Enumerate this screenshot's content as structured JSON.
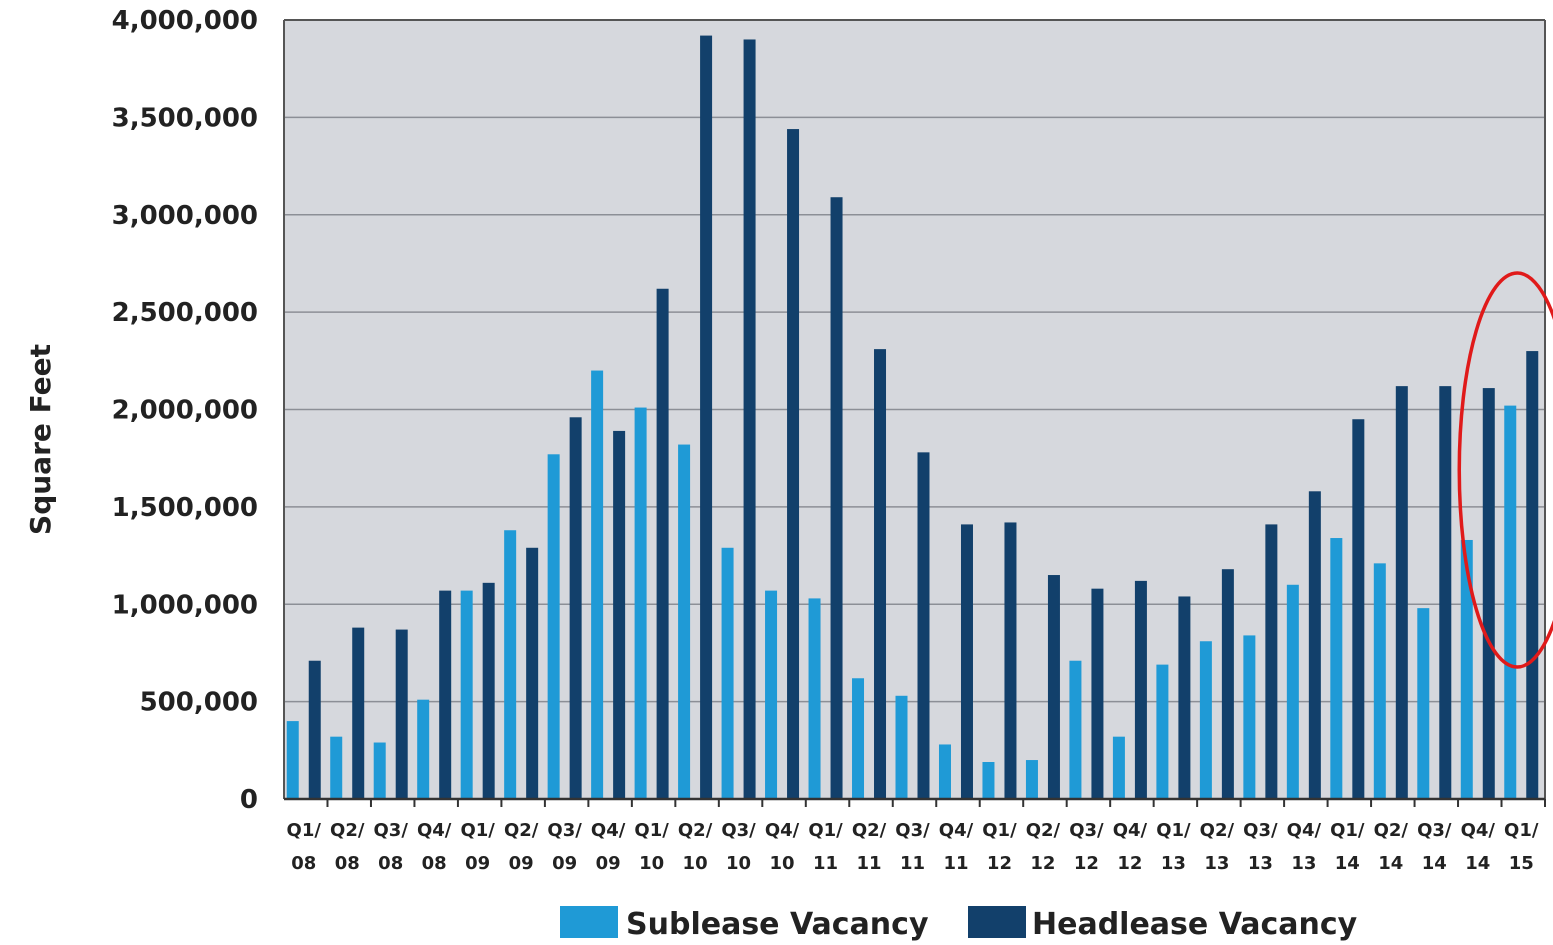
{
  "chart_data": {
    "type": "bar",
    "ylabel": "Square Feet",
    "ylim": [
      0,
      4000000
    ],
    "yticks": [
      0,
      500000,
      1000000,
      1500000,
      2000000,
      2500000,
      3000000,
      3500000,
      4000000
    ],
    "ytick_labels": [
      "0",
      "500,000",
      "1,000,000",
      "1,500,000",
      "2,000,000",
      "2,500,000",
      "3,000,000",
      "3,500,000",
      "4,000,000"
    ],
    "categories": [
      "Q1/08",
      "Q2/08",
      "Q3/08",
      "Q4/08",
      "Q1/09",
      "Q2/09",
      "Q3/09",
      "Q4/09",
      "Q1/10",
      "Q2/10",
      "Q3/10",
      "Q4/10",
      "Q1/11",
      "Q2/11",
      "Q3/11",
      "Q4/11",
      "Q1/12",
      "Q2/12",
      "Q3/12",
      "Q4/12",
      "Q1/13",
      "Q2/13",
      "Q3/13",
      "Q4/13",
      "Q1/14",
      "Q2/14",
      "Q3/14",
      "Q4/14",
      "Q1/15"
    ],
    "category_top": [
      "Q1/",
      "Q2/",
      "Q3/",
      "Q4/",
      "Q1/",
      "Q2/",
      "Q3/",
      "Q4/",
      "Q1/",
      "Q2/",
      "Q3/",
      "Q4/",
      "Q1/",
      "Q2/",
      "Q3/",
      "Q4/",
      "Q1/",
      "Q2/",
      "Q3/",
      "Q4/",
      "Q1/",
      "Q2/",
      "Q3/",
      "Q4/",
      "Q1/",
      "Q2/",
      "Q3/",
      "Q4/",
      "Q1/"
    ],
    "category_bottom": [
      "08",
      "08",
      "08",
      "08",
      "09",
      "09",
      "09",
      "09",
      "10",
      "10",
      "10",
      "10",
      "11",
      "11",
      "11",
      "11",
      "12",
      "12",
      "12",
      "12",
      "13",
      "13",
      "13",
      "13",
      "14",
      "14",
      "14",
      "14",
      "15"
    ],
    "series": [
      {
        "name": "Sublease Vacancy",
        "color": "#1f9ad6",
        "values": [
          400000,
          320000,
          290000,
          510000,
          1070000,
          1380000,
          1770000,
          2200000,
          2010000,
          1820000,
          1290000,
          1070000,
          1030000,
          620000,
          530000,
          280000,
          190000,
          200000,
          710000,
          320000,
          690000,
          810000,
          840000,
          1100000,
          1340000,
          1210000,
          980000,
          1330000,
          2020000
        ]
      },
      {
        "name": "Headlease Vacancy",
        "color": "#12406b",
        "values": [
          710000,
          880000,
          870000,
          1070000,
          1110000,
          1290000,
          1960000,
          1890000,
          2620000,
          3920000,
          3900000,
          3440000,
          3090000,
          2310000,
          1780000,
          1410000,
          1420000,
          1150000,
          1080000,
          1120000,
          1040000,
          1180000,
          1410000,
          1580000,
          1950000,
          2120000,
          2120000,
          2110000,
          2300000
        ]
      }
    ],
    "legend_position": "bottom",
    "grid": true,
    "plot_background": "#d6d8dd",
    "annotation": {
      "type": "ellipse",
      "color": "#e01a1a",
      "around_category": "Q1/15"
    }
  }
}
